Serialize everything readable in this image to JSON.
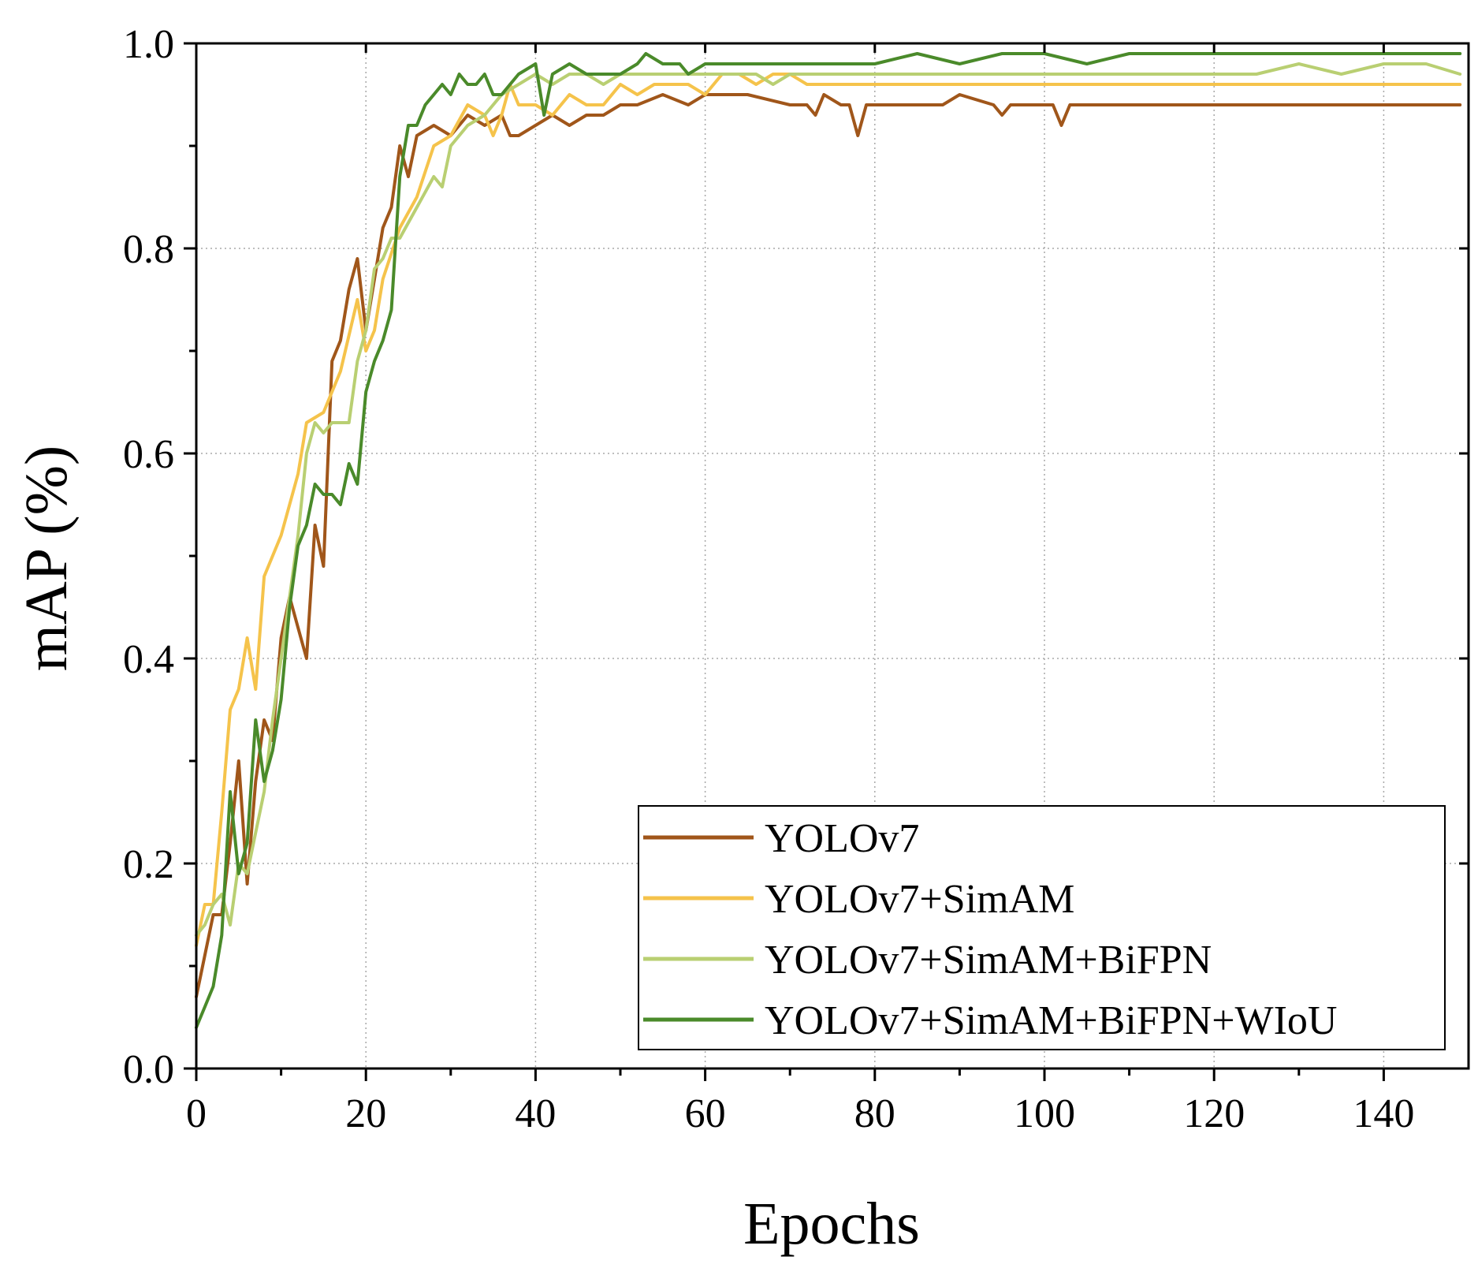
{
  "chart_data": {
    "type": "line",
    "title": "",
    "xlabel": "Epochs",
    "ylabel": "mAP (%)",
    "xlim": [
      0,
      150
    ],
    "ylim": [
      0.0,
      1.0
    ],
    "grid": true,
    "legend_position": "bottom-right",
    "x_ticks": [
      {
        "value": 0,
        "label": "0"
      },
      {
        "value": 20,
        "label": "20"
      },
      {
        "value": 40,
        "label": "40"
      },
      {
        "value": 60,
        "label": "60"
      },
      {
        "value": 80,
        "label": "80"
      },
      {
        "value": 100,
        "label": "100"
      },
      {
        "value": 120,
        "label": "120"
      },
      {
        "value": 140,
        "label": "140"
      }
    ],
    "y_ticks": [
      {
        "value": 0.0,
        "label": "0.0"
      },
      {
        "value": 0.2,
        "label": "0.2"
      },
      {
        "value": 0.4,
        "label": "0.4"
      },
      {
        "value": 0.6,
        "label": "0.6"
      },
      {
        "value": 0.8,
        "label": "0.8"
      },
      {
        "value": 1.0,
        "label": "1.0"
      }
    ],
    "series": [
      {
        "name": "YOLOv7",
        "color": "#a0561a",
        "points": [
          [
            0,
            0.07
          ],
          [
            2,
            0.15
          ],
          [
            3,
            0.15
          ],
          [
            4,
            0.22
          ],
          [
            5,
            0.3
          ],
          [
            6,
            0.18
          ],
          [
            7,
            0.28
          ],
          [
            8,
            0.34
          ],
          [
            9,
            0.32
          ],
          [
            10,
            0.42
          ],
          [
            11,
            0.46
          ],
          [
            12,
            0.43
          ],
          [
            13,
            0.4
          ],
          [
            14,
            0.53
          ],
          [
            15,
            0.49
          ],
          [
            16,
            0.69
          ],
          [
            17,
            0.71
          ],
          [
            18,
            0.76
          ],
          [
            19,
            0.79
          ],
          [
            20,
            0.72
          ],
          [
            21,
            0.77
          ],
          [
            22,
            0.82
          ],
          [
            23,
            0.84
          ],
          [
            24,
            0.9
          ],
          [
            25,
            0.87
          ],
          [
            26,
            0.91
          ],
          [
            28,
            0.92
          ],
          [
            30,
            0.91
          ],
          [
            32,
            0.93
          ],
          [
            34,
            0.92
          ],
          [
            36,
            0.93
          ],
          [
            37,
            0.91
          ],
          [
            38,
            0.91
          ],
          [
            40,
            0.92
          ],
          [
            42,
            0.93
          ],
          [
            44,
            0.92
          ],
          [
            46,
            0.93
          ],
          [
            48,
            0.93
          ],
          [
            50,
            0.94
          ],
          [
            52,
            0.94
          ],
          [
            55,
            0.95
          ],
          [
            58,
            0.94
          ],
          [
            60,
            0.95
          ],
          [
            65,
            0.95
          ],
          [
            70,
            0.94
          ],
          [
            72,
            0.94
          ],
          [
            73,
            0.93
          ],
          [
            74,
            0.95
          ],
          [
            76,
            0.94
          ],
          [
            77,
            0.94
          ],
          [
            78,
            0.91
          ],
          [
            79,
            0.94
          ],
          [
            80,
            0.94
          ],
          [
            85,
            0.94
          ],
          [
            88,
            0.94
          ],
          [
            90,
            0.95
          ],
          [
            94,
            0.94
          ],
          [
            95,
            0.93
          ],
          [
            96,
            0.94
          ],
          [
            100,
            0.94
          ],
          [
            101,
            0.94
          ],
          [
            102,
            0.92
          ],
          [
            103,
            0.94
          ],
          [
            110,
            0.94
          ],
          [
            115,
            0.94
          ],
          [
            120,
            0.94
          ],
          [
            125,
            0.94
          ],
          [
            130,
            0.94
          ],
          [
            135,
            0.94
          ],
          [
            140,
            0.94
          ],
          [
            145,
            0.94
          ],
          [
            149,
            0.94
          ]
        ]
      },
      {
        "name": "YOLOv7+SimAM",
        "color": "#f5c34b",
        "points": [
          [
            0,
            0.12
          ],
          [
            1,
            0.16
          ],
          [
            2,
            0.16
          ],
          [
            3,
            0.25
          ],
          [
            4,
            0.35
          ],
          [
            5,
            0.37
          ],
          [
            6,
            0.42
          ],
          [
            7,
            0.37
          ],
          [
            8,
            0.48
          ],
          [
            10,
            0.52
          ],
          [
            12,
            0.58
          ],
          [
            13,
            0.63
          ],
          [
            15,
            0.64
          ],
          [
            17,
            0.68
          ],
          [
            19,
            0.75
          ],
          [
            20,
            0.7
          ],
          [
            21,
            0.72
          ],
          [
            22,
            0.77
          ],
          [
            24,
            0.82
          ],
          [
            26,
            0.85
          ],
          [
            28,
            0.9
          ],
          [
            30,
            0.91
          ],
          [
            32,
            0.94
          ],
          [
            34,
            0.93
          ],
          [
            35,
            0.91
          ],
          [
            36,
            0.93
          ],
          [
            37,
            0.96
          ],
          [
            38,
            0.94
          ],
          [
            40,
            0.94
          ],
          [
            42,
            0.93
          ],
          [
            44,
            0.95
          ],
          [
            46,
            0.94
          ],
          [
            48,
            0.94
          ],
          [
            50,
            0.96
          ],
          [
            52,
            0.95
          ],
          [
            54,
            0.96
          ],
          [
            56,
            0.96
          ],
          [
            58,
            0.96
          ],
          [
            60,
            0.95
          ],
          [
            62,
            0.97
          ],
          [
            64,
            0.97
          ],
          [
            66,
            0.96
          ],
          [
            68,
            0.97
          ],
          [
            70,
            0.97
          ],
          [
            72,
            0.96
          ],
          [
            74,
            0.96
          ],
          [
            76,
            0.96
          ],
          [
            78,
            0.96
          ],
          [
            80,
            0.96
          ],
          [
            85,
            0.96
          ],
          [
            90,
            0.96
          ],
          [
            95,
            0.96
          ],
          [
            100,
            0.96
          ],
          [
            110,
            0.96
          ],
          [
            120,
            0.96
          ],
          [
            130,
            0.96
          ],
          [
            140,
            0.96
          ],
          [
            149,
            0.96
          ]
        ]
      },
      {
        "name": "YOLOv7+SimAM+BiFPN",
        "color": "#b9cf72",
        "points": [
          [
            0,
            0.13
          ],
          [
            1,
            0.14
          ],
          [
            2,
            0.16
          ],
          [
            3,
            0.17
          ],
          [
            4,
            0.14
          ],
          [
            5,
            0.2
          ],
          [
            6,
            0.19
          ],
          [
            7,
            0.23
          ],
          [
            8,
            0.27
          ],
          [
            9,
            0.34
          ],
          [
            10,
            0.4
          ],
          [
            11,
            0.46
          ],
          [
            12,
            0.52
          ],
          [
            13,
            0.6
          ],
          [
            14,
            0.63
          ],
          [
            15,
            0.62
          ],
          [
            16,
            0.63
          ],
          [
            17,
            0.63
          ],
          [
            18,
            0.63
          ],
          [
            19,
            0.69
          ],
          [
            20,
            0.72
          ],
          [
            21,
            0.78
          ],
          [
            22,
            0.79
          ],
          [
            23,
            0.81
          ],
          [
            24,
            0.81
          ],
          [
            26,
            0.84
          ],
          [
            28,
            0.87
          ],
          [
            29,
            0.86
          ],
          [
            30,
            0.9
          ],
          [
            32,
            0.92
          ],
          [
            34,
            0.93
          ],
          [
            36,
            0.95
          ],
          [
            38,
            0.96
          ],
          [
            40,
            0.97
          ],
          [
            42,
            0.96
          ],
          [
            44,
            0.97
          ],
          [
            46,
            0.97
          ],
          [
            48,
            0.96
          ],
          [
            50,
            0.97
          ],
          [
            52,
            0.97
          ],
          [
            54,
            0.97
          ],
          [
            56,
            0.97
          ],
          [
            58,
            0.97
          ],
          [
            60,
            0.97
          ],
          [
            62,
            0.97
          ],
          [
            64,
            0.97
          ],
          [
            66,
            0.97
          ],
          [
            68,
            0.96
          ],
          [
            70,
            0.97
          ],
          [
            72,
            0.97
          ],
          [
            74,
            0.97
          ],
          [
            76,
            0.97
          ],
          [
            80,
            0.97
          ],
          [
            85,
            0.97
          ],
          [
            90,
            0.97
          ],
          [
            95,
            0.97
          ],
          [
            100,
            0.97
          ],
          [
            105,
            0.97
          ],
          [
            110,
            0.97
          ],
          [
            115,
            0.97
          ],
          [
            120,
            0.97
          ],
          [
            125,
            0.97
          ],
          [
            130,
            0.98
          ],
          [
            135,
            0.97
          ],
          [
            140,
            0.98
          ],
          [
            145,
            0.98
          ],
          [
            149,
            0.97
          ]
        ]
      },
      {
        "name": "YOLOv7+SimAM+BiFPN+WIoU",
        "color": "#4a8a2a",
        "points": [
          [
            0,
            0.04
          ],
          [
            1,
            0.06
          ],
          [
            2,
            0.08
          ],
          [
            3,
            0.13
          ],
          [
            4,
            0.27
          ],
          [
            5,
            0.19
          ],
          [
            6,
            0.22
          ],
          [
            7,
            0.34
          ],
          [
            8,
            0.28
          ],
          [
            9,
            0.31
          ],
          [
            10,
            0.36
          ],
          [
            11,
            0.45
          ],
          [
            12,
            0.51
          ],
          [
            13,
            0.53
          ],
          [
            14,
            0.57
          ],
          [
            15,
            0.56
          ],
          [
            16,
            0.56
          ],
          [
            17,
            0.55
          ],
          [
            18,
            0.59
          ],
          [
            19,
            0.57
          ],
          [
            20,
            0.66
          ],
          [
            21,
            0.69
          ],
          [
            22,
            0.71
          ],
          [
            23,
            0.74
          ],
          [
            24,
            0.87
          ],
          [
            25,
            0.92
          ],
          [
            26,
            0.92
          ],
          [
            27,
            0.94
          ],
          [
            28,
            0.95
          ],
          [
            29,
            0.96
          ],
          [
            30,
            0.95
          ],
          [
            31,
            0.97
          ],
          [
            32,
            0.96
          ],
          [
            33,
            0.96
          ],
          [
            34,
            0.97
          ],
          [
            35,
            0.95
          ],
          [
            36,
            0.95
          ],
          [
            37,
            0.96
          ],
          [
            38,
            0.97
          ],
          [
            40,
            0.98
          ],
          [
            41,
            0.93
          ],
          [
            42,
            0.97
          ],
          [
            44,
            0.98
          ],
          [
            46,
            0.97
          ],
          [
            48,
            0.97
          ],
          [
            50,
            0.97
          ],
          [
            52,
            0.98
          ],
          [
            53,
            0.99
          ],
          [
            55,
            0.98
          ],
          [
            57,
            0.98
          ],
          [
            58,
            0.97
          ],
          [
            60,
            0.98
          ],
          [
            62,
            0.98
          ],
          [
            65,
            0.98
          ],
          [
            68,
            0.98
          ],
          [
            70,
            0.98
          ],
          [
            72,
            0.98
          ],
          [
            75,
            0.98
          ],
          [
            78,
            0.98
          ],
          [
            80,
            0.98
          ],
          [
            85,
            0.99
          ],
          [
            90,
            0.98
          ],
          [
            95,
            0.99
          ],
          [
            100,
            0.99
          ],
          [
            105,
            0.98
          ],
          [
            110,
            0.99
          ],
          [
            115,
            0.99
          ],
          [
            120,
            0.99
          ],
          [
            125,
            0.99
          ],
          [
            130,
            0.99
          ],
          [
            135,
            0.99
          ],
          [
            140,
            0.99
          ],
          [
            145,
            0.99
          ],
          [
            149,
            0.99
          ]
        ]
      }
    ]
  }
}
